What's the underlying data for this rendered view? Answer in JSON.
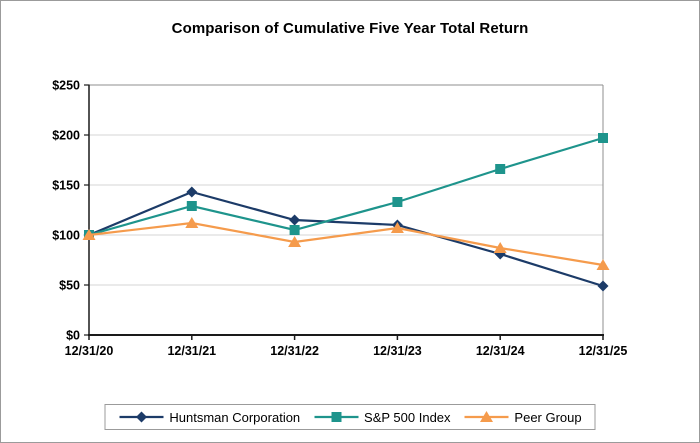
{
  "title": "Comparison of Cumulative Five Year Total Return",
  "chart_data": {
    "type": "line",
    "title": "Comparison of Cumulative Five Year Total Return",
    "categories": [
      "12/31/20",
      "12/31/21",
      "12/31/22",
      "12/31/23",
      "12/31/24",
      "12/31/25"
    ],
    "series": [
      {
        "name": "Huntsman Corporation",
        "color": "#1c3b68",
        "marker": "diamond",
        "values": [
          100,
          143,
          115,
          110,
          81,
          49
        ]
      },
      {
        "name": "S&P 500 Index",
        "color": "#1e948c",
        "marker": "square",
        "values": [
          100,
          129,
          105,
          133,
          166,
          197
        ]
      },
      {
        "name": "Peer Group",
        "color": "#f59b4c",
        "marker": "triangle",
        "values": [
          100,
          112,
          93,
          107,
          87,
          70
        ]
      }
    ],
    "xlabel": "",
    "ylabel": "",
    "ylim": [
      0,
      250
    ],
    "ytick_step": 50,
    "ytick_prefix": "$",
    "grid": true,
    "legend_position": "bottom"
  },
  "theme": {
    "grid_color": "#d6d6d6",
    "axis_color": "#1a1a1a",
    "plot_border_color": "#8f8f8f",
    "canvas_border_color": "#9b9b9b",
    "text_color": "#000000"
  }
}
